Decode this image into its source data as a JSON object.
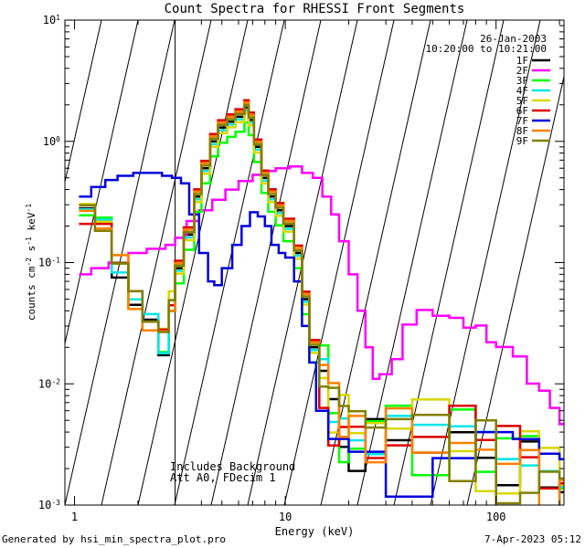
{
  "chart_data": {
    "type": "line",
    "title": "Count Spectra for RHESSI Front Segments",
    "xlabel": "Energy (keV)",
    "ylabel": "counts cm-2 s-1 keV-1",
    "xscale": "log",
    "yscale": "log",
    "xlim": [
      0.9,
      210
    ],
    "ylim": [
      0.001,
      10
    ],
    "x_ticks": [
      {
        "value": 1,
        "label": "1"
      },
      {
        "value": 10,
        "label": "10"
      },
      {
        "value": 100,
        "label": "100"
      }
    ],
    "y_ticks": [
      {
        "value": 10,
        "base": "10",
        "exp": "1"
      },
      {
        "value": 1,
        "base": "10",
        "exp": "0"
      },
      {
        "value": 0.1,
        "base": "10",
        "exp": "-1"
      },
      {
        "value": 0.01,
        "base": "10",
        "exp": "-2"
      },
      {
        "value": 0.001,
        "base": "10",
        "exp": "-3"
      }
    ],
    "shaded_region": {
      "from": 0.9,
      "to": 3.0,
      "style": "hatched"
    },
    "date": "26-Jan-2003",
    "time_range": "10:20:00 to 10:21:00",
    "annotation_lines": [
      "Includes Background",
      "Att A0, FDecim 1"
    ],
    "series": [
      {
        "name": "1F",
        "color": "#000000",
        "shape": "black",
        "scale": 1.0
      },
      {
        "name": "2F",
        "color": "#ff00ff",
        "shape": "magenta",
        "scale": 1.0
      },
      {
        "name": "3F",
        "color": "#00ff00",
        "shape": "normal",
        "scale": 0.75
      },
      {
        "name": "4F",
        "color": "#00e6e6",
        "shape": "normal",
        "scale": 0.95
      },
      {
        "name": "5F",
        "color": "#d8d800",
        "shape": "normal",
        "scale": 0.9
      },
      {
        "name": "6F",
        "color": "#dd0000",
        "shape": "normal",
        "scale": 1.15
      },
      {
        "name": "7F",
        "color": "#0000dd",
        "shape": "blue",
        "scale": 1.0
      },
      {
        "name": "8F",
        "color": "#ff8000",
        "shape": "normal",
        "scale": 1.1
      },
      {
        "name": "9F",
        "color": "#808000",
        "shape": "normal",
        "scale": 1.05
      }
    ]
  },
  "footer": {
    "left": "Generated by hsi_min_spectra_plot.pro",
    "right": "7-Apr-2023 05:12"
  }
}
